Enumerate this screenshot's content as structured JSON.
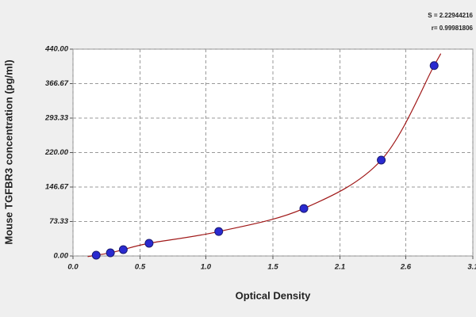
{
  "chart_data": {
    "type": "scatter",
    "xlabel": "Optical Density",
    "ylabel": "Mouse TGFBR3 concentration (pg/ml)",
    "annotations": [
      "S = 2.22944216",
      "r= 0.99981806"
    ],
    "series": [
      {
        "color": "#2a2ad0",
        "x": [
          0.18,
          0.29,
          0.39,
          0.59,
          1.13,
          1.79,
          2.39,
          2.8
        ],
        "values": [
          1.7,
          6.7,
          13.5,
          27,
          52,
          101,
          204,
          405
        ]
      }
    ],
    "curve_color": "#a01818",
    "xlim": [
      0,
      3.1
    ],
    "xticks": [
      {
        "value": 0,
        "label": "0.0"
      },
      {
        "value": 0.52,
        "label": "0.5"
      },
      {
        "value": 1.03,
        "label": "1.0"
      },
      {
        "value": 1.55,
        "label": "1.5"
      },
      {
        "value": 2.07,
        "label": "2.1"
      },
      {
        "value": 2.58,
        "label": "2.6"
      },
      {
        "value": 3.1,
        "label": "3.1"
      }
    ],
    "ylim": [
      0,
      440
    ],
    "yticks": [
      {
        "value": 0,
        "label": "0.00"
      },
      {
        "value": 73.33,
        "label": "73.33"
      },
      {
        "value": 146.67,
        "label": "146.67"
      },
      {
        "value": 220,
        "label": "220.00"
      },
      {
        "value": 293.33,
        "label": "293.33"
      },
      {
        "value": 366.67,
        "label": "366.67"
      },
      {
        "value": 440,
        "label": "440.00"
      }
    ],
    "grid": true
  }
}
